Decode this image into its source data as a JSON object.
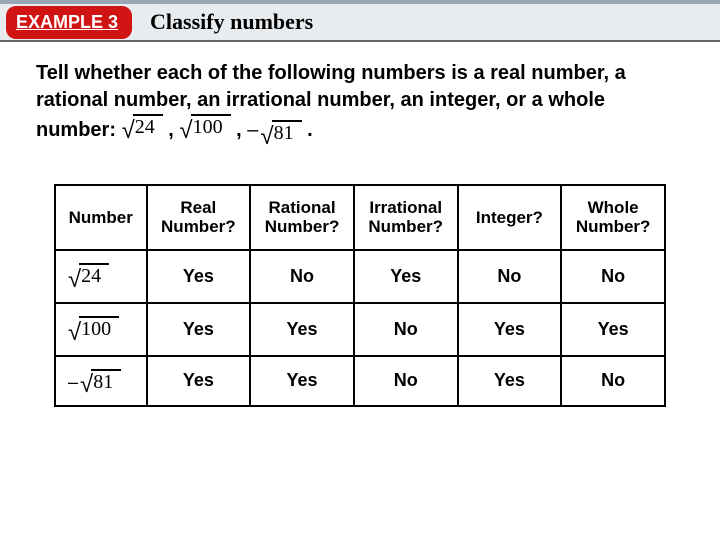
{
  "header": {
    "badge": "EXAMPLE 3",
    "title": "Classify numbers"
  },
  "prompt": {
    "line1": "Tell whether each of the following numbers is a real number, a rational number, an irrational number, an integer, or a whole number:"
  },
  "expressions": {
    "items": [
      {
        "neg": "",
        "radicand": "24"
      },
      {
        "neg": "",
        "radicand": "100"
      },
      {
        "neg": "–",
        "radicand": "81"
      }
    ],
    "sep": ",",
    "end": "."
  },
  "table": {
    "headers": [
      "Number",
      "Real Number?",
      "Rational Number?",
      "Irrational Number?",
      "Integer?",
      "Whole Number?"
    ],
    "rows": [
      {
        "neg": "",
        "radicand": "24",
        "cells": [
          "Yes",
          "No",
          "Yes",
          "No",
          "No"
        ]
      },
      {
        "neg": "",
        "radicand": "100",
        "cells": [
          "Yes",
          "Yes",
          "No",
          "Yes",
          "Yes"
        ]
      },
      {
        "neg": "–",
        "radicand": "81",
        "cells": [
          "Yes",
          "Yes",
          "No",
          "Yes",
          "No"
        ]
      }
    ]
  },
  "colors": {
    "badge_bg": "#d01414",
    "header_bg": "#e8ecef",
    "header_border_top": "#9aa6b3"
  }
}
